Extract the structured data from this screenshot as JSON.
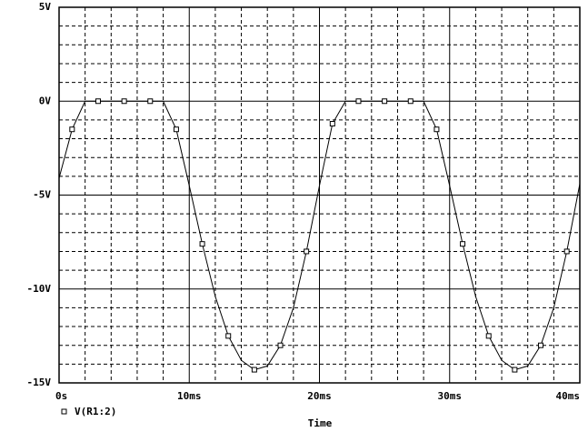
{
  "chart_data": {
    "type": "line",
    "x_label": "Time",
    "x": [
      0,
      1,
      2,
      3,
      4,
      5,
      6,
      7,
      8,
      9,
      10,
      11,
      12,
      13,
      14,
      15,
      16,
      17,
      18,
      19,
      20,
      21,
      22,
      23,
      24,
      25,
      26,
      27,
      28,
      29,
      30,
      31,
      32,
      33,
      34,
      35,
      36,
      37,
      38,
      39,
      40
    ],
    "series": [
      {
        "name": "V(R1:2)",
        "color": "#000000",
        "values": [
          -4.1,
          -1.5,
          0,
          0,
          0,
          0,
          0,
          0,
          0,
          -1.5,
          -4.5,
          -7.6,
          -10.4,
          -12.5,
          -13.8,
          -14.3,
          -14.1,
          -13.0,
          -11.0,
          -8.0,
          -4.5,
          -1.2,
          0,
          0,
          0,
          0,
          0,
          0,
          0,
          -1.5,
          -4.5,
          -7.6,
          -10.4,
          -12.5,
          -13.8,
          -14.3,
          -14.1,
          -13.0,
          -11.0,
          -8.0,
          -4.4
        ]
      }
    ],
    "xlim": [
      0,
      40
    ],
    "ylim": [
      -15,
      5
    ],
    "xticks": [
      {
        "value": 0,
        "label": "0s"
      },
      {
        "value": 10,
        "label": "10ms"
      },
      {
        "value": 20,
        "label": "20ms"
      },
      {
        "value": 30,
        "label": "30ms"
      },
      {
        "value": 40,
        "label": "40ms"
      }
    ],
    "yticks": [
      {
        "value": 5,
        "label": "5V"
      },
      {
        "value": 0,
        "label": "0V"
      },
      {
        "value": -5,
        "label": "-5V"
      },
      {
        "value": -10,
        "label": "-10V"
      },
      {
        "value": -15,
        "label": "-15V"
      }
    ],
    "xminorticks": [
      2,
      4,
      6,
      8,
      12,
      14,
      16,
      18,
      22,
      24,
      26,
      28,
      32,
      34,
      36,
      38
    ],
    "yminorticks": [
      4,
      3,
      2,
      1,
      -1,
      -2,
      -3,
      -4,
      -6,
      -7,
      -8,
      -9,
      -11,
      -12,
      -13,
      -14
    ],
    "grid": true
  }
}
